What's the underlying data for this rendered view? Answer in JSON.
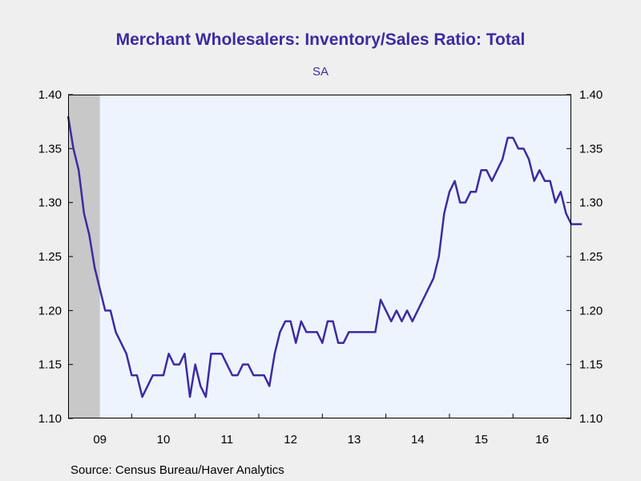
{
  "chart_data": {
    "type": "line",
    "title": "Merchant Wholesalers: Inventory/Sales Ratio: Total",
    "subtitle": "SA",
    "source": "Source:  Census Bureau/Haver Analytics",
    "xlabel": "",
    "ylabel": "",
    "ylim": [
      1.1,
      1.4
    ],
    "xlim": [
      2009.0,
      2016.9167
    ],
    "yticks": [
      "1.10",
      "1.15",
      "1.20",
      "1.25",
      "1.30",
      "1.35",
      "1.40"
    ],
    "xticks": [
      "09",
      "10",
      "11",
      "12",
      "13",
      "14",
      "15",
      "16"
    ],
    "recession_shading": {
      "start": 2009.0,
      "end": 2009.5
    },
    "grid": false,
    "legend": "none",
    "colors": {
      "line": "#3d2ba0",
      "plot_background": "#eef4fe",
      "recession": "#c8c8c8",
      "title": "#3d2ba0"
    },
    "series": [
      {
        "start": "2009-01",
        "values": [
          1.38,
          1.35,
          1.33,
          1.29,
          1.27,
          1.24,
          1.22,
          1.2,
          1.2,
          1.18,
          1.17,
          1.16,
          1.14,
          1.14,
          1.12,
          1.13,
          1.14,
          1.14,
          1.14,
          1.16,
          1.15,
          1.15,
          1.16,
          1.12,
          1.15,
          1.13,
          1.12,
          1.16,
          1.16,
          1.16,
          1.15,
          1.14,
          1.14,
          1.15,
          1.15,
          1.14,
          1.14,
          1.14,
          1.13,
          1.16,
          1.18,
          1.19,
          1.19,
          1.17,
          1.19,
          1.18,
          1.18,
          1.18,
          1.17,
          1.19,
          1.19,
          1.17,
          1.17,
          1.18,
          1.18,
          1.18,
          1.18,
          1.18,
          1.18,
          1.21,
          1.2,
          1.19,
          1.2,
          1.19,
          1.2,
          1.19,
          1.2,
          1.21,
          1.22,
          1.23,
          1.25,
          1.29,
          1.31,
          1.32,
          1.3,
          1.3,
          1.31,
          1.31,
          1.33,
          1.33,
          1.32,
          1.33,
          1.34,
          1.36,
          1.36,
          1.35,
          1.35,
          1.34,
          1.32,
          1.33,
          1.32,
          1.32,
          1.3,
          1.31,
          1.29,
          1.28,
          1.28,
          1.28
        ]
      }
    ]
  }
}
